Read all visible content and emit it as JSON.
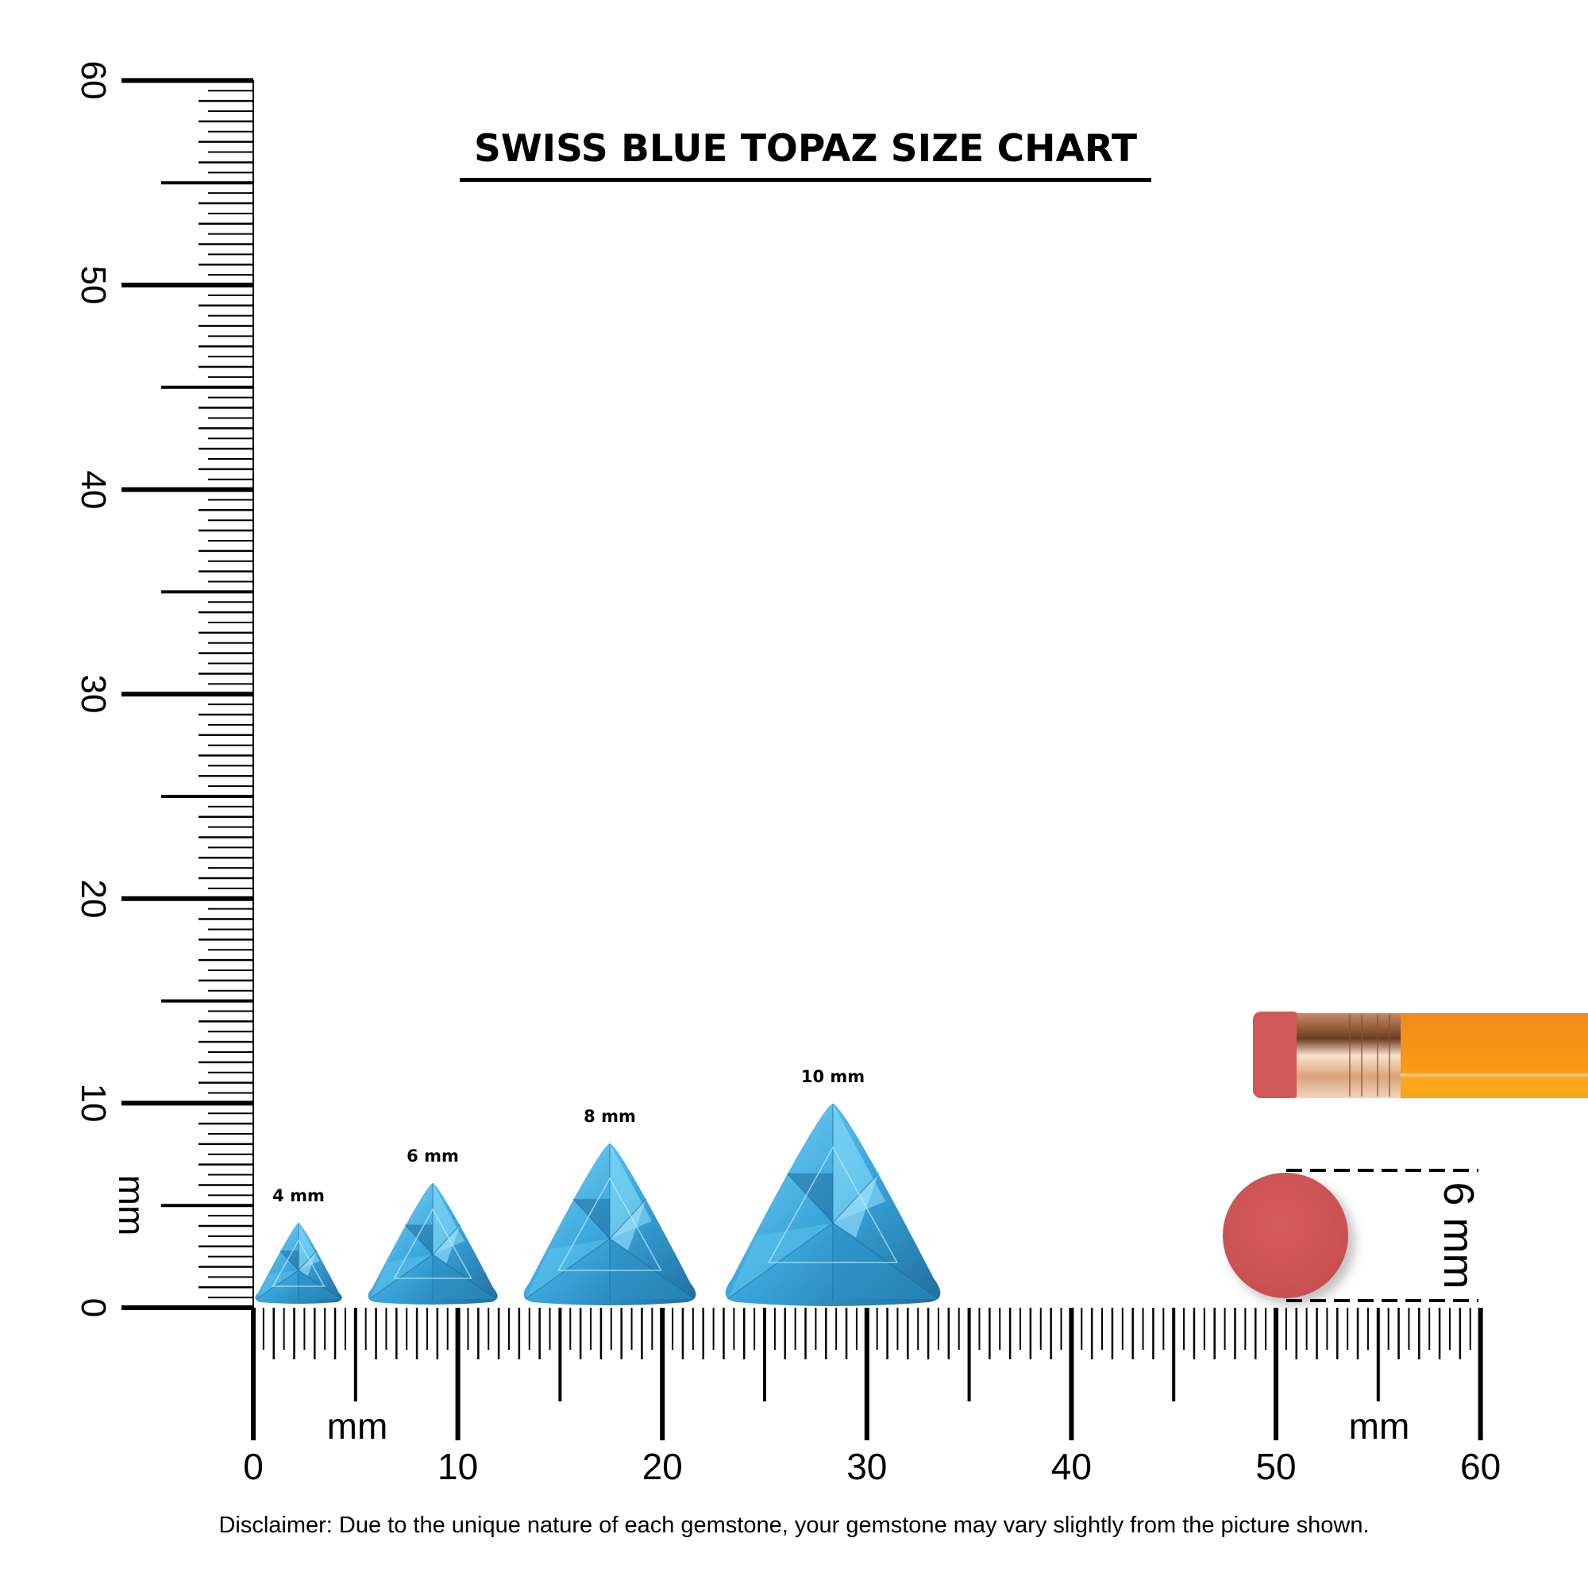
{
  "title": "SWISS BLUE TOPAZ SIZE CHART",
  "ruler": {
    "unit_label": "mm",
    "range_mm": [
      0,
      60
    ],
    "vertical_labels": [
      "0",
      "10",
      "20",
      "30",
      "40",
      "50",
      "60"
    ],
    "horizontal_labels": [
      "0",
      "10",
      "20",
      "30",
      "40",
      "50",
      "60"
    ]
  },
  "gems": [
    {
      "size_mm": 4,
      "label": "4 mm"
    },
    {
      "size_mm": 6,
      "label": "6 mm"
    },
    {
      "size_mm": 8,
      "label": "8 mm"
    },
    {
      "size_mm": 10,
      "label": "10 mm"
    }
  ],
  "gem_shape": "trillion",
  "reference": {
    "object": "pencil-eraser",
    "size_mm": 6,
    "label": "6 mm"
  },
  "colors": {
    "gem": "#3aa6dc",
    "gem_light": "#7fd6f7",
    "gem_dark": "#1f6e9c",
    "eraser": "#d05858",
    "pencil": "#f7941d",
    "ferrule": "#d9a27a"
  },
  "disclaimer": "Disclaimer: Due to the unique nature of each gemstone, your gemstone may vary slightly from the picture shown."
}
